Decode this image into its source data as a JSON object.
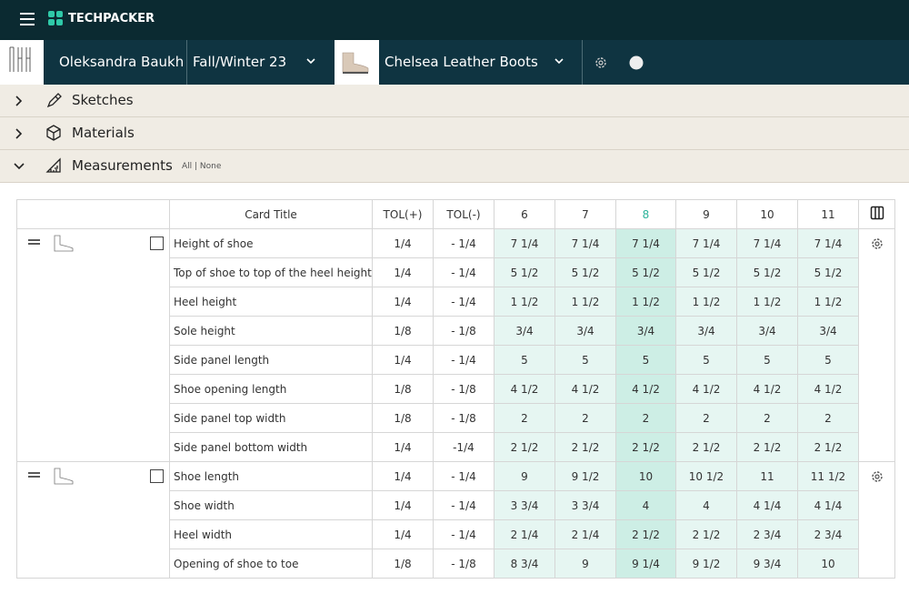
{
  "header": {
    "brand": "TECHPACKER"
  },
  "toolbar": {
    "designer": "Oleksandra Baukh",
    "season": "Fall/Winter 23",
    "product": "Chelsea Leather Boots"
  },
  "sections": [
    {
      "label": "Sketches"
    },
    {
      "label": "Materials"
    },
    {
      "label": "Measurements",
      "filter": "All | None"
    }
  ],
  "table": {
    "columns": [
      "Card Title",
      "TOL(+)",
      "TOL(-)",
      "6",
      "7",
      "8",
      "9",
      "10",
      "11"
    ],
    "groups": [
      {
        "rows": [
          [
            "Height of shoe",
            "1/4",
            "- 1/4",
            "7 1/4",
            "7 1/4",
            "7 1/4",
            "7 1/4",
            "7 1/4",
            "7 1/4"
          ],
          [
            "Top of shoe to top of the heel height",
            "1/4",
            "- 1/4",
            "5 1/2",
            "5 1/2",
            "5 1/2",
            "5 1/2",
            "5 1/2",
            "5 1/2"
          ],
          [
            "Heel height",
            "1/4",
            "- 1/4",
            "1 1/2",
            "1 1/2",
            "1 1/2",
            "1 1/2",
            "1 1/2",
            "1 1/2"
          ],
          [
            "Sole height",
            "1/8",
            "- 1/8",
            "3/4",
            "3/4",
            "3/4",
            "3/4",
            "3/4",
            "3/4"
          ],
          [
            "Side panel length",
            "1/4",
            "- 1/4",
            "5",
            "5",
            "5",
            "5",
            "5",
            "5"
          ],
          [
            "Shoe opening length",
            "1/8",
            "- 1/8",
            "4 1/2",
            "4 1/2",
            "4 1/2",
            "4 1/2",
            "4 1/2",
            "4 1/2"
          ],
          [
            "Side panel top width",
            "1/8",
            "- 1/8",
            "2",
            "2",
            "2",
            "2",
            "2",
            "2"
          ],
          [
            "Side panel bottom width",
            "1/4",
            "-1/4",
            "2 1/2",
            "2 1/2",
            "2 1/2",
            "2 1/2",
            "2 1/2",
            "2 1/2"
          ]
        ]
      },
      {
        "rows": [
          [
            "Shoe length",
            "1/4",
            "- 1/4",
            "9",
            "9 1/2",
            "10",
            "10 1/2",
            "11",
            "11 1/2"
          ],
          [
            "Shoe width",
            "1/4",
            "- 1/4",
            "3 3/4",
            "3 3/4",
            "4",
            "4",
            "4 1/4",
            "4 1/4"
          ],
          [
            "Heel width",
            "1/4",
            "- 1/4",
            "2 1/4",
            "2 1/4",
            "2 1/2",
            "2 1/2",
            "2 3/4",
            "2 3/4"
          ],
          [
            "Opening of shoe to toe",
            "1/8",
            "- 1/8",
            "8 3/4",
            "9",
            "9 1/4",
            "9 1/2",
            "9 3/4",
            "10"
          ]
        ]
      }
    ]
  }
}
